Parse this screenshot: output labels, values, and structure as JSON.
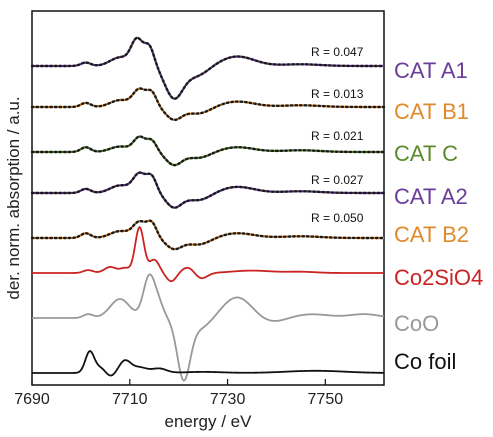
{
  "chart_data": {
    "type": "line",
    "xlabel": "energy / eV",
    "ylabel": "der. norm. absorption / a.u.",
    "xlim": [
      7690,
      7762
    ],
    "xticks": [
      7690,
      7710,
      7730,
      7750
    ],
    "grid": false,
    "legend_placement": "right",
    "series": [
      {
        "name": "CAT A1",
        "color": "#6a3d9a",
        "fit_color": "#1a1a1a",
        "r": "R = 0.047",
        "style": "dotted+line"
      },
      {
        "name": "CAT B1",
        "color": "#e08a2c",
        "fit_color": "#1a1a1a",
        "r": "R = 0.013",
        "style": "dotted+line"
      },
      {
        "name": "CAT C",
        "color": "#5a8a2a",
        "fit_color": "#1a1a1a",
        "r": "R = 0.021",
        "style": "dotted+line"
      },
      {
        "name": "CAT A2",
        "color": "#6a3d9a",
        "fit_color": "#1a1a1a",
        "r": "R = 0.027",
        "style": "dotted+line"
      },
      {
        "name": "CAT B2",
        "color": "#e08a2c",
        "fit_color": "#1a1a1a",
        "r": "R = 0.050",
        "style": "dotted+line"
      },
      {
        "name": "Co2SiO4",
        "color": "#cc2222",
        "style": "line"
      },
      {
        "name": "CoO",
        "color": "#999999",
        "style": "line"
      },
      {
        "name": "Co foil",
        "color": "#111111",
        "style": "line"
      }
    ]
  }
}
